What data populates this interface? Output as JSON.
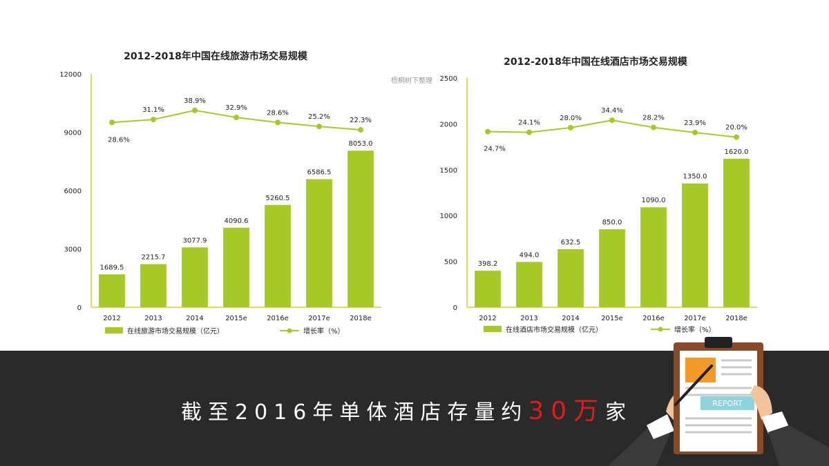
{
  "watermark": "梧桐树下整理",
  "banner": {
    "prefix": "截至2016年单体酒店存量约",
    "highlight": "30万",
    "suffix": "家"
  },
  "report_label": "REPORT",
  "colors": {
    "bar": "#a7c928",
    "line": "#a7c928",
    "axis": "#e6c82e",
    "banner_bg": "#2a2a2a",
    "highlight": "#e31b1b"
  },
  "chart_data": [
    {
      "type": "bar",
      "title": "2012-2018年中国在线旅游市场交易规模",
      "categories": [
        "2012",
        "2013",
        "2014",
        "2015e",
        "2016e",
        "2017e",
        "2018e"
      ],
      "series": [
        {
          "name": "在线旅游市场交易规模（亿元）",
          "type": "bar",
          "values": [
            1689.5,
            2215.7,
            3077.9,
            4090.6,
            5260.5,
            6586.5,
            8053.0
          ],
          "labels": [
            "1689.5",
            "2215.7",
            "3077.9",
            "4090.6",
            "5260.5",
            "6586.5",
            "8053.0"
          ]
        },
        {
          "name": "增长率（%）",
          "type": "line",
          "values": [
            28.6,
            31.1,
            38.9,
            32.9,
            28.6,
            25.2,
            22.3
          ],
          "labels": [
            "28.6%",
            "31.1%",
            "38.9%",
            "32.9%",
            "28.6%",
            "25.2%",
            "22.3%"
          ]
        }
      ],
      "ylim": [
        0,
        12000
      ],
      "yticks": [
        "0",
        "3000",
        "6000",
        "9000",
        "12000"
      ],
      "legend_position": "bottom"
    },
    {
      "type": "bar",
      "title": "2012-2018年中国在线酒店市场交易规模",
      "categories": [
        "2012",
        "2013",
        "2014",
        "2015e",
        "2016e",
        "2017e",
        "2018e"
      ],
      "series": [
        {
          "name": "在线酒店市场交易规模（亿元）",
          "type": "bar",
          "values": [
            398.2,
            494.0,
            632.5,
            850.0,
            1090.0,
            1350.0,
            1620.0
          ],
          "labels": [
            "398.2",
            "494.0",
            "632.5",
            "850.0",
            "1090.0",
            "1350.0",
            "1620.0"
          ]
        },
        {
          "name": "增长率（%）",
          "type": "line",
          "values": [
            24.7,
            24.1,
            28.0,
            34.4,
            28.2,
            23.9,
            20.0
          ],
          "labels": [
            "24.7%",
            "24.1%",
            "28.0%",
            "34.4%",
            "28.2%",
            "23.9%",
            "20.0%"
          ]
        }
      ],
      "ylim": [
        0,
        2500
      ],
      "yticks": [
        "0",
        "500",
        "1000",
        "1500",
        "2000",
        "2500"
      ],
      "legend_position": "bottom"
    }
  ]
}
